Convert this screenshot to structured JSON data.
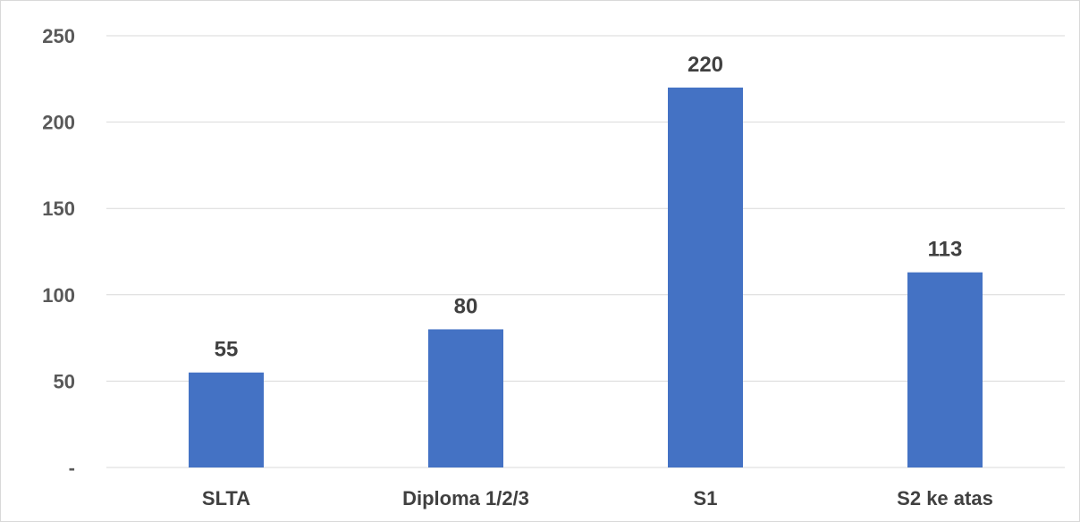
{
  "chart_data": {
    "type": "bar",
    "title": "",
    "xlabel": "",
    "ylabel": "",
    "categories": [
      "SLTA",
      "Diploma 1/2/3",
      "S1",
      "S2 ke atas"
    ],
    "values": [
      55,
      80,
      220,
      113
    ],
    "data_labels": [
      "55",
      "80",
      "220",
      "113"
    ],
    "ylim": [
      0,
      250
    ],
    "y_ticks": [
      {
        "value": 0,
        "label": "-"
      },
      {
        "value": 50,
        "label": "50"
      },
      {
        "value": 100,
        "label": "100"
      },
      {
        "value": 150,
        "label": "150"
      },
      {
        "value": 200,
        "label": "200"
      },
      {
        "value": 250,
        "label": "250"
      }
    ],
    "grid": true,
    "legend": "none",
    "bar_color": "#4472c4"
  }
}
